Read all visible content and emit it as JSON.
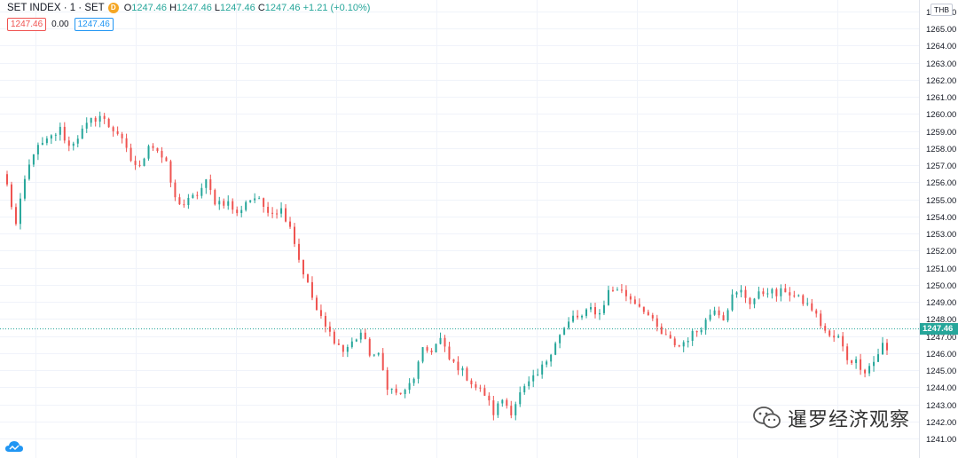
{
  "legend": {
    "symbol": "SET INDEX · 1 · SET",
    "badge": "D",
    "open_label": "O",
    "open": "1247.46",
    "high_label": "H",
    "high": "1247.46",
    "low_label": "L",
    "low": "1247.46",
    "close_label": "C",
    "close": "1247.46",
    "change": "+1.21 (+0.10%)"
  },
  "indicator": {
    "left_value": "1247.46",
    "middle_value": "0.00",
    "right_value": "1247.46"
  },
  "axis": {
    "currency": "THB",
    "last_price": "1247.46"
  },
  "watermark": {
    "text": "暹罗经济观察"
  },
  "colors": {
    "up": "#26a69a",
    "down": "#ef5350",
    "grid": "#f0f3fa",
    "axis_text": "#131722"
  },
  "icons": {
    "logo": "cloud-icon",
    "watermark": "wechat-icon"
  },
  "chart_data": {
    "type": "candlestick",
    "title": "SET INDEX · 1 · SET",
    "interval": "1 minute",
    "ylim": [
      1240,
      1266
    ],
    "yticks": [
      "1241.00",
      "1242.00",
      "1243.00",
      "1244.00",
      "1245.00",
      "1246.00",
      "1247.00",
      "1248.00",
      "1249.00",
      "1250.00",
      "1251.00",
      "1252.00",
      "1253.00",
      "1254.00",
      "1255.00",
      "1256.00",
      "1257.00",
      "1258.00",
      "1259.00",
      "1260.00",
      "1261.00",
      "1262.00",
      "1263.00",
      "1264.00",
      "1265.00",
      "1266.00"
    ],
    "last_price": 1247.46,
    "grid": true,
    "path_points": [
      [
        0,
        1255.8
      ],
      [
        2,
        1253.5
      ],
      [
        4,
        1256.1
      ],
      [
        6,
        1257.8
      ],
      [
        9,
        1258.4
      ],
      [
        12,
        1259.1
      ],
      [
        14,
        1258.1
      ],
      [
        17,
        1259.0
      ],
      [
        19,
        1259.6
      ],
      [
        21,
        1259.9
      ],
      [
        23,
        1259.3
      ],
      [
        25,
        1258.9
      ],
      [
        28,
        1257.3
      ],
      [
        30,
        1256.8
      ],
      [
        32,
        1258.3
      ],
      [
        34,
        1257.9
      ],
      [
        36,
        1257.0
      ],
      [
        38,
        1255.0
      ],
      [
        40,
        1254.7
      ],
      [
        43,
        1255.3
      ],
      [
        45,
        1256.0
      ],
      [
        47,
        1254.9
      ],
      [
        50,
        1254.8
      ],
      [
        52,
        1254.1
      ],
      [
        54,
        1254.9
      ],
      [
        56,
        1255.1
      ],
      [
        58,
        1254.6
      ],
      [
        60,
        1254.3
      ],
      [
        62,
        1254.4
      ],
      [
        64,
        1253.5
      ],
      [
        66,
        1251.5
      ],
      [
        68,
        1250.0
      ],
      [
        70,
        1248.5
      ],
      [
        72,
        1247.5
      ],
      [
        74,
        1246.8
      ],
      [
        76,
        1246.1
      ],
      [
        78,
        1246.6
      ],
      [
        80,
        1247.2
      ],
      [
        82,
        1246.0
      ],
      [
        84,
        1245.8
      ],
      [
        86,
        1244.1
      ],
      [
        88,
        1243.6
      ],
      [
        90,
        1243.7
      ],
      [
        92,
        1244.6
      ],
      [
        94,
        1246.1
      ],
      [
        96,
        1246.2
      ],
      [
        98,
        1246.8
      ],
      [
        100,
        1245.6
      ],
      [
        102,
        1245.2
      ],
      [
        104,
        1244.6
      ],
      [
        106,
        1244.0
      ],
      [
        108,
        1243.6
      ],
      [
        110,
        1242.5
      ],
      [
        112,
        1243.3
      ],
      [
        114,
        1242.6
      ],
      [
        116,
        1243.6
      ],
      [
        118,
        1244.2
      ],
      [
        120,
        1244.7
      ],
      [
        122,
        1245.6
      ],
      [
        124,
        1246.7
      ],
      [
        126,
        1247.4
      ],
      [
        128,
        1248.1
      ],
      [
        130,
        1248.1
      ],
      [
        132,
        1248.6
      ],
      [
        134,
        1248.3
      ],
      [
        136,
        1249.6
      ],
      [
        138,
        1249.8
      ],
      [
        140,
        1249.4
      ],
      [
        142,
        1249.0
      ],
      [
        144,
        1248.6
      ],
      [
        146,
        1247.8
      ],
      [
        148,
        1247.1
      ],
      [
        150,
        1246.7
      ],
      [
        152,
        1246.4
      ],
      [
        154,
        1246.9
      ],
      [
        156,
        1247.3
      ],
      [
        158,
        1247.9
      ],
      [
        160,
        1248.7
      ],
      [
        162,
        1248.1
      ],
      [
        164,
        1249.3
      ],
      [
        166,
        1249.6
      ],
      [
        168,
        1249.0
      ],
      [
        170,
        1249.4
      ],
      [
        172,
        1249.7
      ],
      [
        174,
        1249.4
      ],
      [
        176,
        1249.7
      ],
      [
        178,
        1249.3
      ],
      [
        180,
        1249.0
      ],
      [
        182,
        1248.6
      ],
      [
        184,
        1247.7
      ],
      [
        186,
        1246.9
      ],
      [
        188,
        1246.9
      ],
      [
        190,
        1245.7
      ],
      [
        192,
        1245.5
      ],
      [
        194,
        1245.0
      ],
      [
        196,
        1245.5
      ],
      [
        198,
        1246.5
      ],
      [
        199,
        1246.1
      ]
    ]
  }
}
